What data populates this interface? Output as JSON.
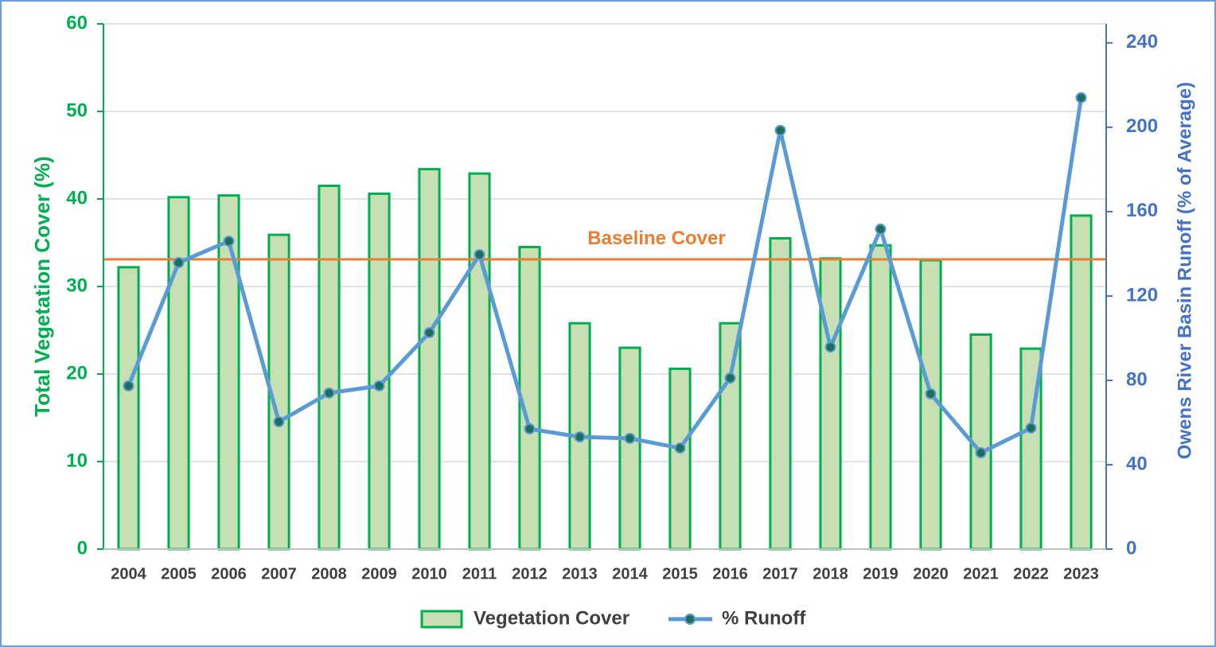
{
  "chart_data": {
    "type": "bar",
    "categories": [
      "2004",
      "2005",
      "2006",
      "2007",
      "2008",
      "2009",
      "2010",
      "2011",
      "2012",
      "2013",
      "2014",
      "2015",
      "2016",
      "2017",
      "2018",
      "2019",
      "2020",
      "2021",
      "2022",
      "2023"
    ],
    "ylabel": "Total Vegetation Cover (%)",
    "y2label": "Owens River Basin Runoff (% of Average)",
    "ylim": [
      0,
      60
    ],
    "yticks": [
      0,
      10,
      20,
      30,
      40,
      50,
      60
    ],
    "y2lim": [
      0,
      249
    ],
    "y2ticks": [
      0,
      40,
      80,
      120,
      160,
      200,
      240
    ],
    "grid": true,
    "yaxis_color": "#00b050",
    "y2axis_color": "#4472c4",
    "series": [
      {
        "name": "Vegetation Cover",
        "type": "bar",
        "color": "#c6e0b4",
        "edge_color": "#00b050",
        "values": [
          32.2,
          40.2,
          40.4,
          35.9,
          41.5,
          40.6,
          43.4,
          42.9,
          34.5,
          25.8,
          23.0,
          20.6,
          25.8,
          35.5,
          33.2,
          34.7,
          33.0,
          24.5,
          22.9,
          38.1
        ]
      },
      {
        "name": "% Runoff",
        "type": "line",
        "axis": "y2",
        "color": "#5b9bd5",
        "marker_color": "#1e6e5c",
        "values": [
          77.4,
          135.8,
          146,
          60.4,
          74,
          77.4,
          102.6,
          139.6,
          57,
          53.2,
          52.5,
          47.9,
          81.1,
          198.5,
          95.8,
          151.7,
          73.6,
          45.7,
          57.4,
          214
        ]
      }
    ],
    "reference_line": {
      "label": "Baseline Cover",
      "value": 33.1,
      "color": "#ed7d31"
    }
  }
}
